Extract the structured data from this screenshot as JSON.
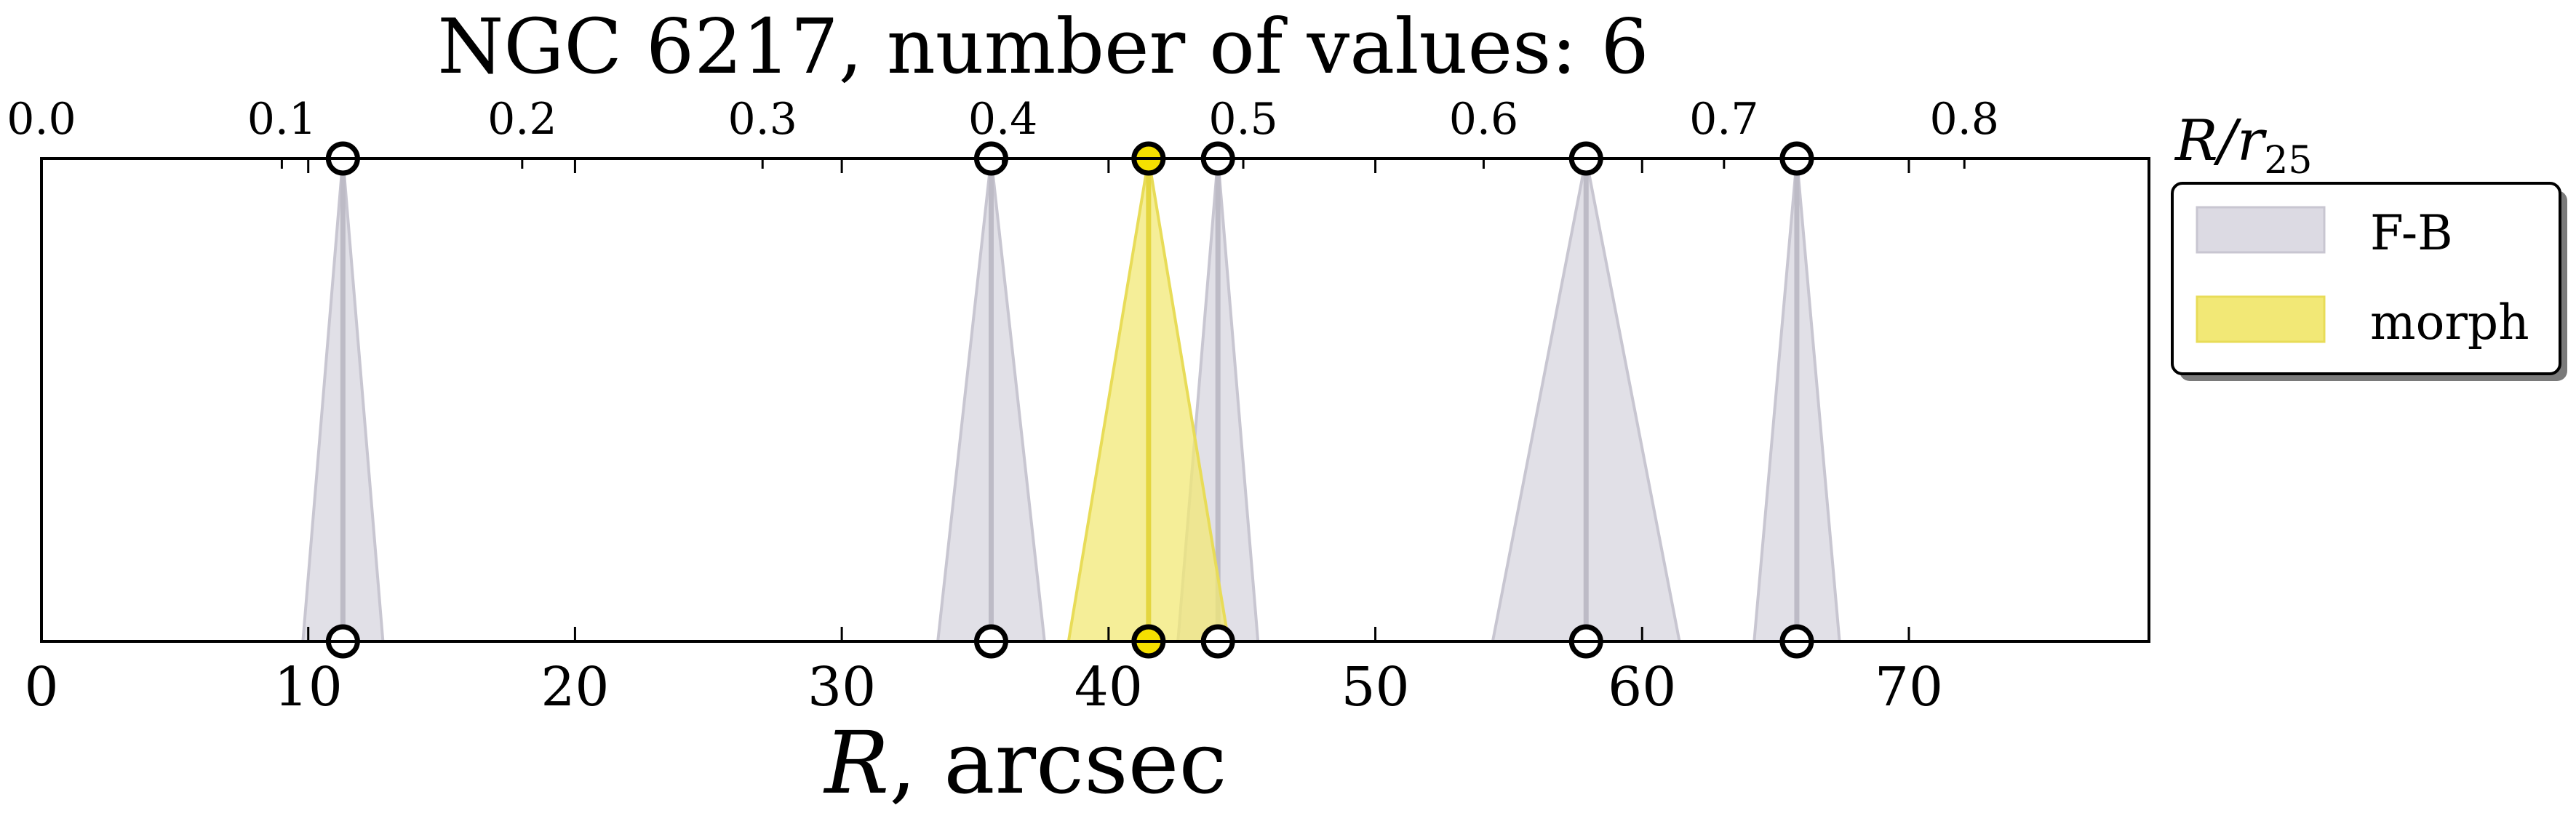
{
  "colors": {
    "fb_fill": "#dcdae3",
    "fb_edge": "#c8c6d1",
    "fb_line": "#bdbbc6",
    "morph_fill": "#f2e876",
    "morph_edge": "#e8dc58",
    "morph_line": "#e4d640",
    "morph_marker": "#f5e000",
    "axis": "#000000"
  },
  "chart_data": {
    "type": "scatter",
    "title": "NGC 6217, number of values: 6",
    "xlabel": "R, arcsec",
    "xlabel_italic": "R",
    "xlabel_rest": ", arcsec",
    "top_axis_label_main": "R/r",
    "top_axis_label_sub": "25",
    "xlim": [
      0,
      79
    ],
    "xticks": [
      0,
      10,
      20,
      30,
      40,
      50,
      60,
      70
    ],
    "xtick_labels": [
      "0",
      "10",
      "20",
      "30",
      "40",
      "50",
      "60",
      "70"
    ],
    "top_axis": {
      "scale_arcsec_per_unit": 90.1,
      "ticks": [
        0.0,
        0.1,
        0.2,
        0.3,
        0.4,
        0.5,
        0.6,
        0.7,
        0.8
      ],
      "tick_labels": [
        "0.0",
        "0.1",
        "0.2",
        "0.3",
        "0.4",
        "0.5",
        "0.6",
        "0.7",
        "0.8"
      ]
    },
    "legend": {
      "placement": "right-top"
    },
    "series": [
      {
        "name": "F-B",
        "points": [
          {
            "x": 11.3,
            "err": 1.5
          },
          {
            "x": 35.6,
            "err": 2.0
          },
          {
            "x": 44.1,
            "err": 1.5
          },
          {
            "x": 57.9,
            "err": 3.5
          },
          {
            "x": 65.8,
            "err": 1.6
          }
        ]
      },
      {
        "name": "morph",
        "points": [
          {
            "x": 41.5,
            "err": 3.0
          }
        ]
      }
    ]
  }
}
